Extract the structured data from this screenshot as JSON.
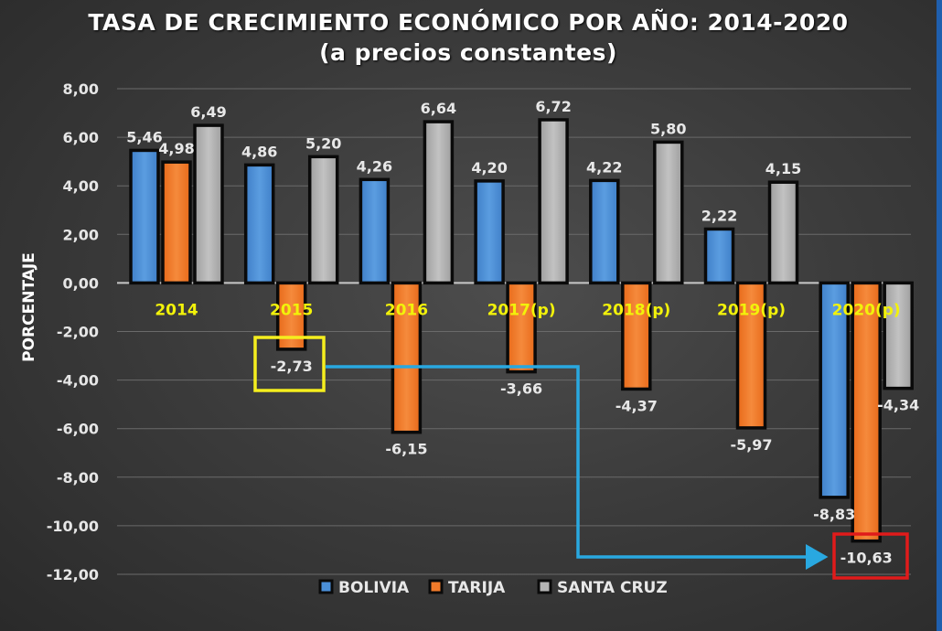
{
  "chart_data": {
    "type": "bar",
    "title": "TASA DE CRECIMIENTO ECONÓMICO POR AÑO: 2014-2020",
    "subtitle": "(a precios constantes)",
    "xlabel": "",
    "ylabel": "PORCENTAJE",
    "ylim": [
      -12,
      8
    ],
    "yticks": [
      8,
      6,
      4,
      2,
      0,
      -2,
      -4,
      -6,
      -8,
      -10,
      -12
    ],
    "ytick_labels": [
      "8,00",
      "6,00",
      "4,00",
      "2,00",
      "0,00",
      "-2,00",
      "-4,00",
      "-6,00",
      "-8,00",
      "-10,00",
      "-12,00"
    ],
    "grid": true,
    "legend_position": "bottom",
    "categories": [
      "2014",
      "2015",
      "2016",
      "2017(p)",
      "2018(p)",
      "2019(p)",
      "2020(p)"
    ],
    "series": [
      {
        "name": "BOLIVIA",
        "color": "#4a8fd8",
        "values": [
          5.46,
          4.86,
          4.26,
          4.2,
          4.22,
          2.22,
          -8.83
        ],
        "labels": [
          "5,46",
          "4,86",
          "4,26",
          "4,20",
          "4,22",
          "2,22",
          "-8,83"
        ]
      },
      {
        "name": "TARIJA",
        "color": "#f07a2a",
        "values": [
          4.98,
          -2.73,
          -6.15,
          -3.66,
          -4.37,
          -5.97,
          -10.63
        ],
        "labels": [
          "4,98",
          "-2,73",
          "-6,15",
          "-3,66",
          "-4,37",
          "-5,97",
          "-10,63"
        ]
      },
      {
        "name": "SANTA CRUZ",
        "color": "#b3b3b3",
        "values": [
          6.49,
          5.2,
          6.64,
          6.72,
          5.8,
          4.15,
          -4.34
        ],
        "labels": [
          "6,49",
          "5,20",
          "6,64",
          "6,72",
          "5,80",
          "4,15",
          "-4,34"
        ]
      }
    ],
    "annotations": [
      {
        "type": "highlight-box",
        "color": "#f5ee1e",
        "target": "TARIJA 2015",
        "label": "-2,73"
      },
      {
        "type": "highlight-box",
        "color": "#e01b1b",
        "target": "TARIJA 2020(p)",
        "label": "-10,63"
      },
      {
        "type": "arrow",
        "color": "#29a8e0",
        "from": "TARIJA 2015",
        "to": "TARIJA 2020(p)"
      }
    ]
  }
}
